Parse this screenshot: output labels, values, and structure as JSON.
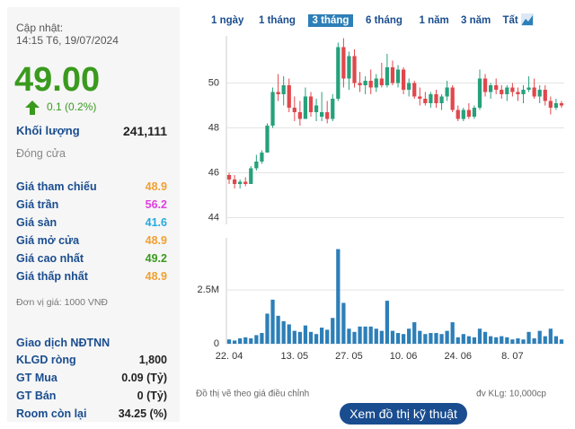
{
  "header": {
    "label": "Cập nhật:",
    "timestamp": "14:15 T6, 19/07/2024"
  },
  "quote": {
    "price": "49.00",
    "change": "0.1 (0.2%)"
  },
  "volume": {
    "label": "Khối lượng",
    "value": "241,111"
  },
  "close_label": "Đóng cửa",
  "prices": [
    {
      "label": "Giá tham chiếu",
      "value": "48.9",
      "color": "#f0a030"
    },
    {
      "label": "Giá trần",
      "value": "56.2",
      "color": "#e040e0"
    },
    {
      "label": "Giá sàn",
      "value": "41.6",
      "color": "#27a9e0"
    },
    {
      "label": "Giá mở cửa",
      "value": "48.9",
      "color": "#f0a030"
    },
    {
      "label": "Giá cao nhất",
      "value": "49.2",
      "color": "#3a9a1e"
    },
    {
      "label": "Giá thấp nhất",
      "value": "48.9",
      "color": "#f0a030"
    }
  ],
  "unit_note": "Đơn vị giá: 1000 VNĐ",
  "foreign": {
    "title": "Giao dịch NĐTNN",
    "rows": [
      [
        "KLGD ròng",
        "1,800"
      ],
      [
        "GT Mua",
        "0.09 (Tỷ)"
      ],
      [
        "GT Bán",
        "0 (Tỷ)"
      ],
      [
        "Room còn lại",
        "34.25 (%)"
      ]
    ]
  },
  "ranges": {
    "items": [
      "1 ngày",
      "1 tháng",
      "3 tháng",
      "6 tháng",
      "1 năm",
      "3 năm",
      "Tất cả"
    ],
    "active": 2
  },
  "chart_data": [
    {
      "type": "candlestick",
      "up_color": "#26a17b",
      "down_color": "#e0474c",
      "open": [
        45.9,
        45.7,
        45.5,
        45.6,
        45.5,
        46.2,
        46.5,
        46.9,
        48.1,
        49.6,
        49.5,
        49.9,
        48.9,
        48.7,
        48.4,
        49.4,
        48.7,
        48.5,
        48.7,
        48.4,
        49.3,
        51.6,
        50.2,
        51.2,
        50.0,
        49.9,
        50.1,
        49.8,
        50.2,
        49.9,
        50.7,
        50.0,
        50.6,
        49.7,
        50.0,
        49.4,
        49.3,
        49.1,
        49.5,
        49.1,
        49.4,
        49.8,
        48.8,
        48.4,
        48.8,
        48.5,
        48.9,
        50.2,
        49.6,
        49.9,
        49.7,
        49.5,
        49.8,
        49.6,
        49.5,
        49.7,
        49.8,
        49.4,
        49.7,
        49.2,
        48.9,
        49.1
      ],
      "high": [
        46.0,
        45.9,
        45.7,
        45.8,
        46.3,
        46.8,
        47.0,
        48.2,
        49.8,
        50.4,
        50.3,
        50.2,
        49.4,
        49.2,
        49.8,
        49.6,
        49.3,
        49.6,
        49.2,
        49.5,
        51.8,
        52.0,
        51.4,
        51.5,
        50.5,
        50.3,
        50.6,
        50.4,
        50.9,
        51.3,
        51.0,
        50.8,
        50.7,
        50.2,
        50.1,
        49.8,
        49.6,
        49.6,
        49.7,
        49.5,
        50.1,
        49.9,
        49.0,
        48.9,
        49.1,
        49.0,
        50.6,
        50.4,
        50.0,
        50.2,
        49.9,
        49.9,
        50.0,
        49.8,
        49.9,
        50.3,
        50.2,
        49.9,
        49.9,
        49.4,
        49.3,
        49.2
      ],
      "low": [
        45.5,
        45.3,
        45.3,
        45.4,
        45.5,
        46.1,
        46.4,
        46.9,
        48.0,
        49.2,
        49.0,
        48.7,
        48.3,
        48.1,
        48.4,
        48.5,
        48.3,
        48.3,
        48.2,
        48.3,
        49.2,
        49.8,
        49.7,
        49.8,
        49.6,
        49.5,
        49.5,
        49.6,
        49.8,
        49.8,
        49.9,
        49.8,
        49.5,
        49.4,
        49.3,
        49.0,
        49.0,
        48.9,
        48.9,
        48.8,
        49.2,
        48.7,
        48.3,
        48.3,
        48.4,
        48.4,
        48.8,
        49.4,
        49.3,
        49.5,
        49.3,
        49.2,
        49.4,
        49.2,
        49.1,
        49.6,
        49.3,
        49.1,
        49.0,
        48.6,
        48.8,
        48.9
      ],
      "close": [
        45.7,
        45.5,
        45.6,
        45.5,
        46.2,
        46.5,
        46.9,
        48.1,
        49.6,
        49.5,
        49.9,
        48.9,
        48.7,
        48.4,
        49.4,
        48.7,
        49.0,
        48.7,
        48.4,
        49.3,
        51.6,
        50.2,
        51.2,
        50.0,
        49.9,
        50.1,
        49.8,
        50.2,
        49.9,
        50.7,
        50.0,
        50.6,
        49.7,
        50.0,
        49.4,
        49.3,
        49.1,
        49.5,
        49.1,
        49.4,
        49.8,
        48.8,
        48.4,
        48.8,
        48.5,
        48.9,
        50.2,
        49.6,
        49.9,
        49.7,
        49.5,
        49.8,
        49.6,
        49.5,
        49.7,
        49.8,
        49.4,
        49.7,
        49.2,
        48.9,
        49.1,
        49.0
      ],
      "ylim": [
        43.7,
        52.1
      ],
      "yticks": [
        44,
        46,
        48,
        50
      ],
      "grid": true
    },
    {
      "type": "bar",
      "color": "#2d7fb8",
      "categories": [
        "22. 04",
        null,
        null,
        null,
        null,
        null,
        null,
        null,
        null,
        null,
        null,
        null,
        "13. 05",
        null,
        null,
        null,
        null,
        null,
        null,
        null,
        null,
        null,
        "27. 05",
        null,
        null,
        null,
        null,
        null,
        null,
        null,
        null,
        null,
        "10. 06",
        null,
        null,
        null,
        null,
        null,
        null,
        null,
        null,
        null,
        "24. 06",
        null,
        null,
        null,
        null,
        null,
        null,
        null,
        null,
        null,
        "8. 07",
        null,
        null,
        null,
        null,
        null,
        null,
        null,
        null,
        null
      ],
      "values": [
        200000,
        150000,
        250000,
        300000,
        250000,
        400000,
        500000,
        1400000,
        2050000,
        1300000,
        1050000,
        900000,
        600000,
        550000,
        850000,
        550000,
        450000,
        750000,
        650000,
        1200000,
        4400000,
        1900000,
        700000,
        550000,
        800000,
        800000,
        800000,
        700000,
        600000,
        2000000,
        600000,
        500000,
        450000,
        700000,
        1000000,
        600000,
        450000,
        500000,
        500000,
        450000,
        600000,
        1000000,
        300000,
        450000,
        350000,
        300000,
        700000,
        550000,
        350000,
        300000,
        350000,
        300000,
        200000,
        250000,
        200000,
        550000,
        250000,
        600000,
        350000,
        700000,
        350000,
        200000
      ],
      "ylim": [
        0,
        4800000
      ],
      "yticks": [
        0,
        {
          "value": 2500000,
          "label": "2.5M"
        }
      ],
      "grid": true
    }
  ],
  "notes": {
    "adjusted": "Đồ thị vẽ theo giá điều chỉnh",
    "unit": "đv KLg: 10,000cp"
  },
  "button": "Xem đồ thị kỹ thuật"
}
